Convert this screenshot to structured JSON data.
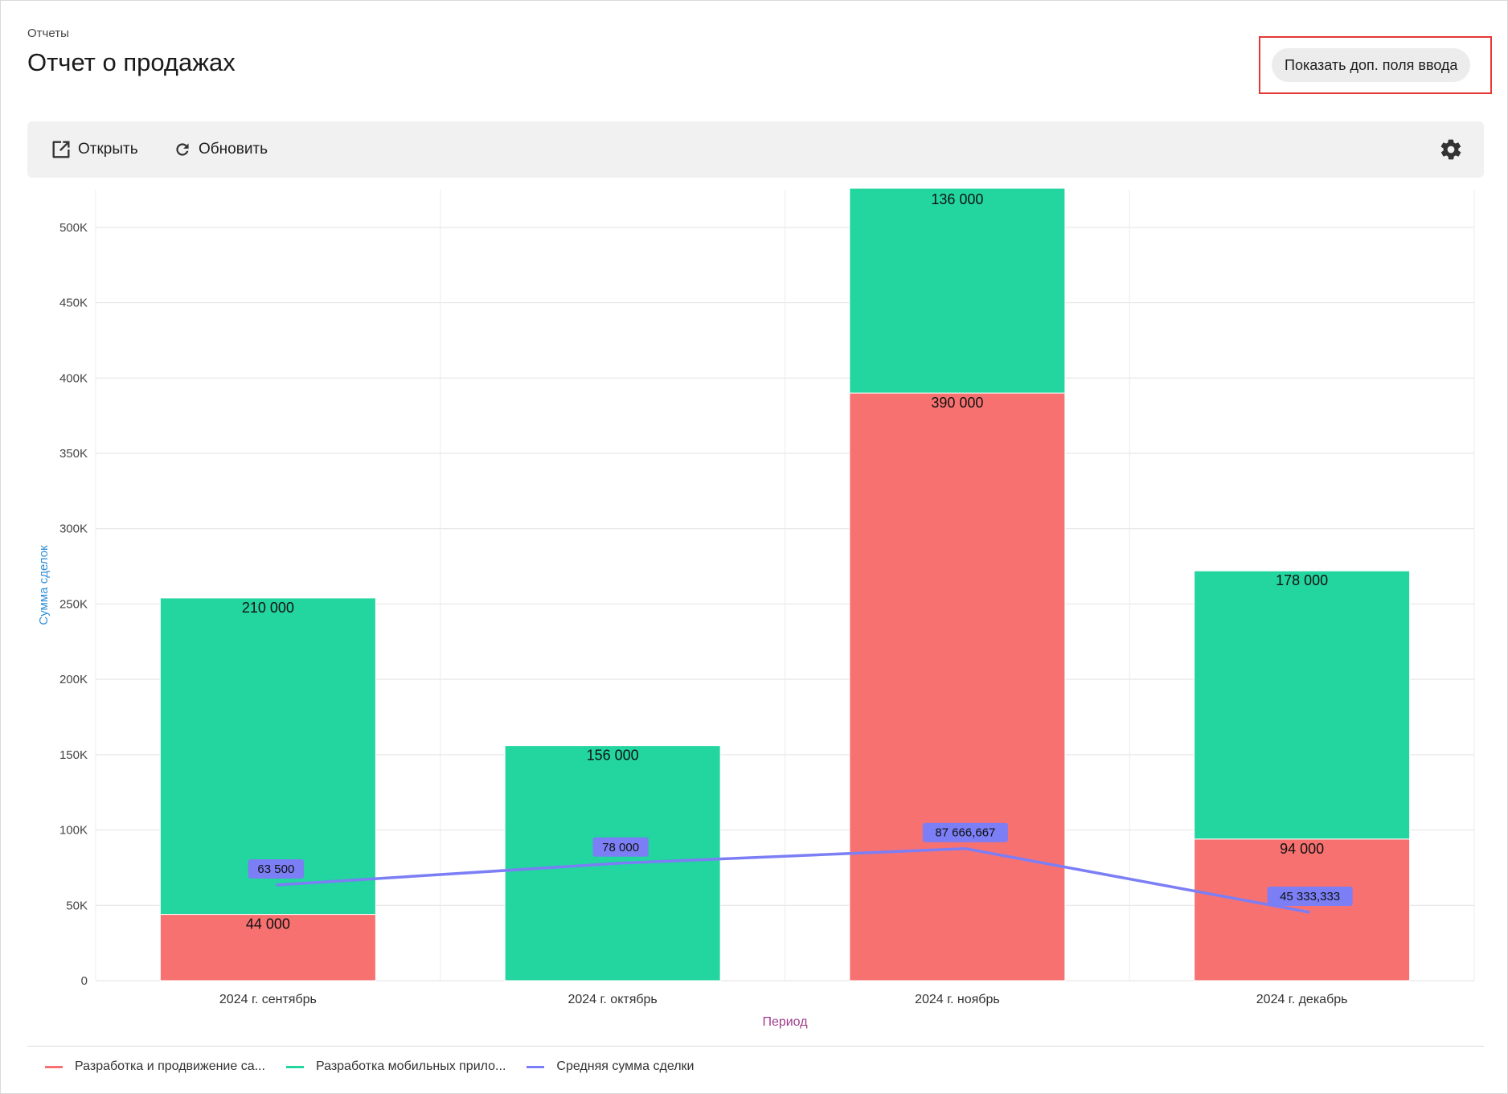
{
  "header": {
    "breadcrumb": "Отчеты",
    "title": "Отчет о продажах",
    "extra_fields_label": "Показать доп. поля ввода"
  },
  "toolbar": {
    "open_label": "Открыть",
    "open_icon": "external-link-icon",
    "refresh_label": "Обновить",
    "refresh_icon": "refresh-icon",
    "settings_icon": "gear-icon"
  },
  "colors": {
    "series_red": "#f87171",
    "series_green": "#23d59f",
    "series_line": "#7b7ef5",
    "ylabel": "#2f8fd8",
    "xlabel": "#a23c8c",
    "highlight": "#e53935"
  },
  "chart_data": {
    "type": "bar",
    "stacked": true,
    "categories": [
      "2024 г. сентябрь",
      "2024 г. октябрь",
      "2024 г. ноябрь",
      "2024 г. декабрь"
    ],
    "series": [
      {
        "name": "Разработка и продвижение са...",
        "type": "bar",
        "values": [
          44000,
          null,
          390000,
          94000
        ],
        "labels": [
          "44 000",
          "",
          "390 000",
          "94 000"
        ]
      },
      {
        "name": "Разработка мобильных прило...",
        "type": "bar",
        "values": [
          210000,
          156000,
          136000,
          178000
        ],
        "labels": [
          "210 000",
          "156 000",
          "136 000",
          "178 000"
        ]
      },
      {
        "name": "Средняя сумма сделки",
        "type": "line",
        "values": [
          63500,
          78000,
          87666.667,
          45333.333
        ],
        "labels": [
          "63 500",
          "78 000",
          "87 666,667",
          "45 333,333"
        ]
      }
    ],
    "yticks": [
      "0",
      "50K",
      "100K",
      "150K",
      "200K",
      "250K",
      "300K",
      "350K",
      "400K",
      "450K",
      "500K"
    ],
    "xlabel": "Период",
    "ylabel": "Сумма сделок",
    "ylim": [
      0,
      525000
    ],
    "grid": true,
    "legend_position": "bottom-left"
  }
}
